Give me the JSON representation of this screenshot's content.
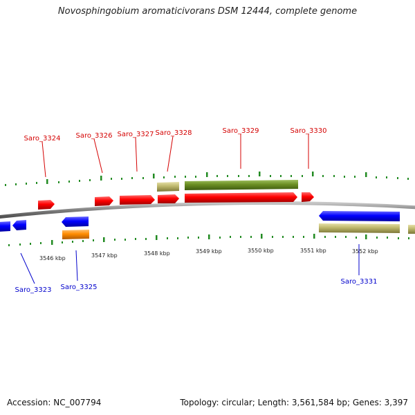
{
  "title": "Novosphingobium aromaticivorans DSM 12444, complete genome",
  "footer": {
    "accession": "Accession: NC_007794",
    "summary": "Topology: circular; Length: 3,561,584 bp; Genes: 3,397"
  },
  "scale": {
    "labels": [
      "3546 kbp",
      "3547 kbp",
      "3548 kbp",
      "3549 kbp",
      "3550 kbp",
      "3551 kbp",
      "3552 kbp"
    ]
  },
  "genes": [
    {
      "name": "Saro_3323",
      "strand": "-",
      "color": "#0000ff"
    },
    {
      "name": "Saro_3324",
      "strand": "+",
      "color": "#ff0000"
    },
    {
      "name": "Saro_3325",
      "strand": "-",
      "color": "#0000ff"
    },
    {
      "name": "Saro_3326",
      "strand": "+",
      "color": "#ff0000"
    },
    {
      "name": "Saro_3327",
      "strand": "+",
      "color": "#ff0000"
    },
    {
      "name": "Saro_3328",
      "strand": "+",
      "color": "#ff0000"
    },
    {
      "name": "Saro_3329",
      "strand": "+",
      "color": "#ff0000"
    },
    {
      "name": "Saro_3330",
      "strand": "+",
      "color": "#ff0000"
    },
    {
      "name": "Saro_3331",
      "strand": "-",
      "color": "#0000ff"
    }
  ],
  "colors": {
    "forward_gene": "#ff0000",
    "reverse_gene": "#0000ff",
    "feature_olive": "#6b8e23",
    "feature_khaki": "#bdb76b",
    "feature_orange": "#ff8c00",
    "backbone": "#808080",
    "ticks": "#228b22"
  }
}
